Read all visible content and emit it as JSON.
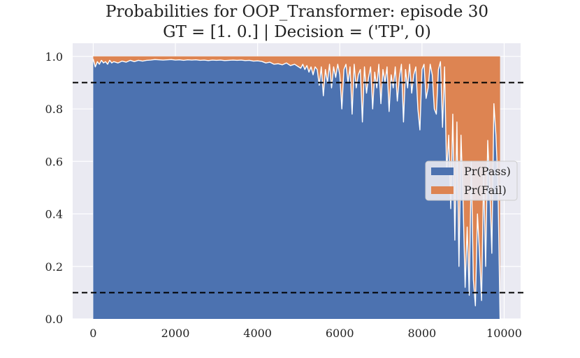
{
  "chart_data": {
    "type": "area",
    "title": "Probabilities for OOP_Transformer: episode 30",
    "subtitle": "GT = [1. 0.] | Decision = ('TP', 0)",
    "xlabel": "",
    "ylabel": "",
    "xlim": [
      -500,
      10400
    ],
    "ylim": [
      0.0,
      1.05
    ],
    "xticks": [
      0,
      2000,
      4000,
      6000,
      8000,
      10000
    ],
    "yticks": [
      0.0,
      0.2,
      0.4,
      0.6,
      0.8,
      1.0
    ],
    "xtick_labels": [
      "0",
      "2000",
      "4000",
      "6000",
      "8000",
      "10000"
    ],
    "ytick_labels": [
      "0.0",
      "0.2",
      "0.4",
      "0.6",
      "0.8",
      "1.0"
    ],
    "grid": true,
    "legend_position": "center-right",
    "threshold_lines": [
      0.9,
      0.1
    ],
    "stacked": true,
    "series": [
      {
        "name": "Pr(Pass)",
        "color": "#4c72b0"
      },
      {
        "name": "Pr(Fail)",
        "color": "#dd8452"
      }
    ],
    "x": [
      0,
      50,
      100,
      150,
      200,
      250,
      300,
      350,
      400,
      450,
      500,
      600,
      700,
      800,
      900,
      1000,
      1100,
      1200,
      1300,
      1400,
      1500,
      1600,
      1700,
      1800,
      1900,
      2000,
      2100,
      2200,
      2300,
      2400,
      2500,
      2600,
      2700,
      2800,
      2900,
      3000,
      3100,
      3200,
      3300,
      3400,
      3500,
      3600,
      3700,
      3800,
      3900,
      4000,
      4100,
      4200,
      4300,
      4400,
      4500,
      4600,
      4700,
      4800,
      4900,
      5000,
      5050,
      5100,
      5150,
      5200,
      5250,
      5300,
      5350,
      5400,
      5450,
      5500,
      5550,
      5600,
      5650,
      5700,
      5750,
      5800,
      5850,
      5900,
      5950,
      6000,
      6050,
      6100,
      6150,
      6200,
      6250,
      6300,
      6350,
      6400,
      6450,
      6500,
      6550,
      6600,
      6650,
      6700,
      6750,
      6800,
      6850,
      6900,
      6950,
      7000,
      7050,
      7100,
      7150,
      7200,
      7250,
      7300,
      7350,
      7400,
      7450,
      7500,
      7550,
      7600,
      7650,
      7700,
      7750,
      7800,
      7850,
      7900,
      7950,
      8000,
      8050,
      8100,
      8150,
      8200,
      8250,
      8300,
      8350,
      8400,
      8450,
      8500,
      8550,
      8600,
      8650,
      8700,
      8750,
      8800,
      8850,
      8900,
      8950,
      9000,
      9050,
      9100,
      9150,
      9200,
      9250,
      9300,
      9350,
      9400,
      9450,
      9500,
      9550,
      9600,
      9650,
      9700,
      9750,
      9800,
      9850,
      9900
    ],
    "pass": [
      0.99,
      0.96,
      0.98,
      0.97,
      0.985,
      0.975,
      0.98,
      0.97,
      0.985,
      0.975,
      0.98,
      0.975,
      0.982,
      0.978,
      0.985,
      0.98,
      0.985,
      0.982,
      0.985,
      0.986,
      0.988,
      0.987,
      0.986,
      0.987,
      0.988,
      0.986,
      0.987,
      0.985,
      0.987,
      0.986,
      0.987,
      0.985,
      0.986,
      0.984,
      0.986,
      0.985,
      0.986,
      0.984,
      0.985,
      0.986,
      0.985,
      0.986,
      0.984,
      0.985,
      0.982,
      0.983,
      0.981,
      0.975,
      0.978,
      0.97,
      0.972,
      0.968,
      0.975,
      0.965,
      0.97,
      0.96,
      0.955,
      0.97,
      0.95,
      0.965,
      0.94,
      0.96,
      0.93,
      0.96,
      0.95,
      0.89,
      0.96,
      0.85,
      0.95,
      0.9,
      0.97,
      0.88,
      0.96,
      0.92,
      0.97,
      0.93,
      0.8,
      0.95,
      0.97,
      0.9,
      0.96,
      0.78,
      0.97,
      0.88,
      0.93,
      0.95,
      0.75,
      0.96,
      0.86,
      0.92,
      0.96,
      0.8,
      0.94,
      0.88,
      0.97,
      0.82,
      0.95,
      0.9,
      0.96,
      0.79,
      0.93,
      0.88,
      0.96,
      0.83,
      0.92,
      0.97,
      0.75,
      0.95,
      0.88,
      0.97,
      0.86,
      0.93,
      0.96,
      0.8,
      0.72,
      0.95,
      0.97,
      0.84,
      0.88,
      0.97,
      0.93,
      0.8,
      0.78,
      0.95,
      0.98,
      0.73,
      0.96,
      0.55,
      0.7,
      0.42,
      0.78,
      0.3,
      0.75,
      0.2,
      0.7,
      0.45,
      0.12,
      0.35,
      0.09,
      0.6,
      0.15,
      0.05,
      0.4,
      0.25,
      0.07,
      0.55,
      0.2,
      0.68,
      0.5,
      0.25,
      0.82,
      0.7,
      0.5,
      0.0
    ]
  }
}
